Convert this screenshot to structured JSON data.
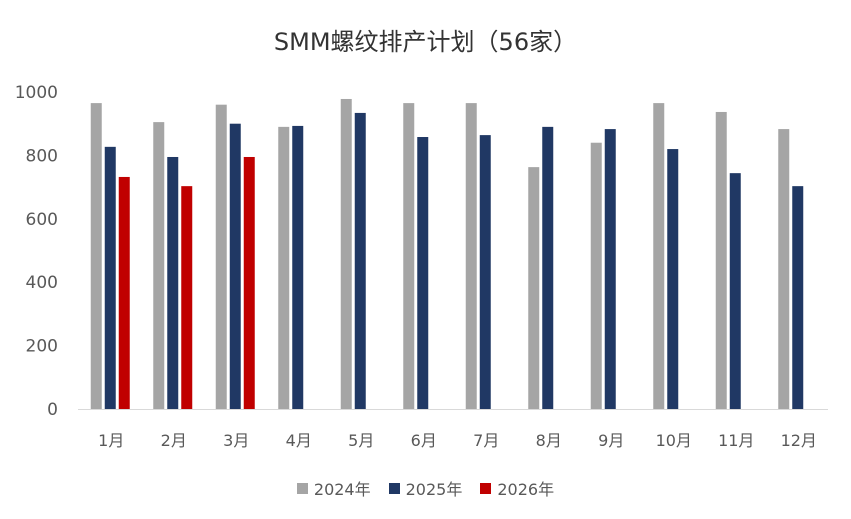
{
  "chart_data": {
    "type": "bar",
    "title": "SMM螺纹排产计划（56家）",
    "categories": [
      "1月",
      "2月",
      "3月",
      "4月",
      "5月",
      "6月",
      "7月",
      "8月",
      "9月",
      "10月",
      "11月",
      "12月"
    ],
    "series": [
      {
        "name": "2024年",
        "color": "#A5A5A5",
        "values": [
          965,
          905,
          960,
          890,
          978,
          965,
          965,
          763,
          840,
          965,
          937,
          883
        ]
      },
      {
        "name": "2025年",
        "color": "#203864",
        "values": [
          827,
          795,
          900,
          893,
          934,
          858,
          864,
          890,
          883,
          820,
          744,
          703
        ]
      },
      {
        "name": "2026年",
        "color": "#C00000",
        "values": [
          732,
          703,
          795,
          null,
          null,
          null,
          null,
          null,
          null,
          null,
          null,
          null
        ]
      }
    ],
    "yticks": [
      0,
      200,
      400,
      600,
      800,
      1000
    ],
    "ylim": [
      0,
      1000
    ],
    "xlabel": "",
    "ylabel": "",
    "legend": "bottom",
    "grid": false
  }
}
